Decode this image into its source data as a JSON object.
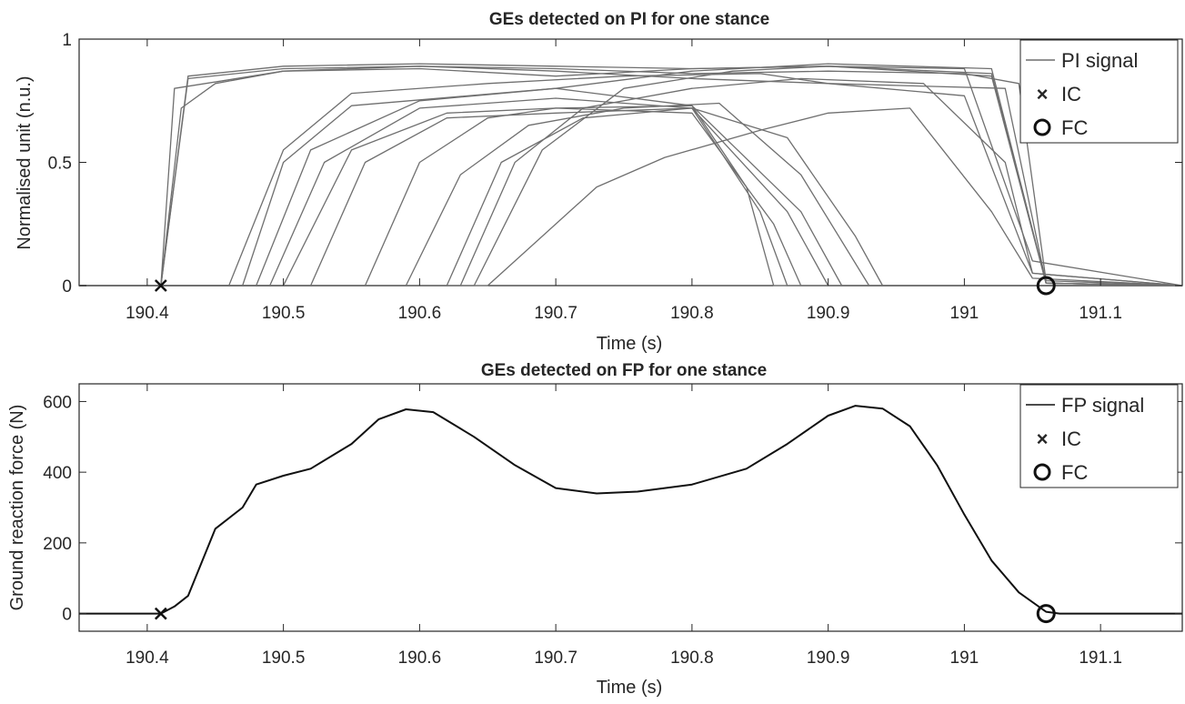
{
  "chart_data": [
    {
      "type": "line",
      "title": "GEs detected on PI for one stance",
      "xlabel": "Time (s)",
      "ylabel": "Normalised unit (n.u.)",
      "xlim": [
        190.35,
        191.16
      ],
      "ylim": [
        0,
        1
      ],
      "x_ticks": [
        190.4,
        190.5,
        190.6,
        190.7,
        190.8,
        190.9,
        191,
        191.1
      ],
      "x_tick_labels": [
        "190.4",
        "190.5",
        "190.6",
        "190.7",
        "190.8",
        "190.9",
        "191",
        "191.1"
      ],
      "y_ticks": [
        0,
        0.5,
        1
      ],
      "y_tick_labels": [
        "0",
        "0.5",
        "1"
      ],
      "grid": false,
      "legend_position": "top-right",
      "legend": [
        {
          "label": "PI signal",
          "marker": "line"
        },
        {
          "label": "IC",
          "marker": "x"
        },
        {
          "label": "FC",
          "marker": "o"
        }
      ],
      "colors": {
        "signal": "#6f6f6f",
        "marker": "#111111"
      },
      "series": [
        {
          "values": [
            [
              190.35,
              0
            ],
            [
              190.41,
              0
            ],
            [
              190.425,
              0.72
            ],
            [
              190.45,
              0.82
            ],
            [
              190.5,
              0.87
            ],
            [
              190.6,
              0.89
            ],
            [
              190.7,
              0.88
            ],
            [
              190.8,
              0.86
            ],
            [
              190.9,
              0.87
            ],
            [
              191,
              0.86
            ],
            [
              191.04,
              0.82
            ],
            [
              191.06,
              0.02
            ],
            [
              191.16,
              0
            ]
          ]
        },
        {
          "values": [
            [
              190.35,
              0
            ],
            [
              190.41,
              0
            ],
            [
              190.43,
              0.85
            ],
            [
              190.5,
              0.89
            ],
            [
              190.6,
              0.9
            ],
            [
              190.7,
              0.89
            ],
            [
              190.8,
              0.88
            ],
            [
              190.9,
              0.89
            ],
            [
              191.02,
              0.86
            ],
            [
              191.06,
              0.01
            ],
            [
              191.16,
              0
            ]
          ]
        },
        {
          "values": [
            [
              190.35,
              0
            ],
            [
              190.41,
              0
            ],
            [
              190.43,
              0.84
            ],
            [
              190.5,
              0.88
            ],
            [
              190.6,
              0.89
            ],
            [
              190.7,
              0.87
            ],
            [
              190.8,
              0.84
            ],
            [
              190.9,
              0.82
            ],
            [
              191.03,
              0.8
            ],
            [
              191.06,
              0.01
            ],
            [
              191.16,
              0
            ]
          ]
        },
        {
          "values": [
            [
              190.35,
              0
            ],
            [
              190.41,
              0
            ],
            [
              190.42,
              0.8
            ],
            [
              190.5,
              0.87
            ],
            [
              190.6,
              0.88
            ],
            [
              190.7,
              0.85
            ],
            [
              190.8,
              0.88
            ],
            [
              190.9,
              0.89
            ],
            [
              191.02,
              0.85
            ],
            [
              191.06,
              0.01
            ],
            [
              191.16,
              0
            ]
          ]
        },
        {
          "values": [
            [
              190.35,
              0
            ],
            [
              190.46,
              0
            ],
            [
              190.5,
              0.55
            ],
            [
              190.55,
              0.78
            ],
            [
              190.65,
              0.82
            ],
            [
              190.75,
              0.85
            ],
            [
              190.85,
              0.86
            ],
            [
              190.9,
              0.82
            ],
            [
              191,
              0.77
            ],
            [
              191.05,
              0.05
            ],
            [
              191.16,
              0
            ]
          ]
        },
        {
          "values": [
            [
              190.35,
              0
            ],
            [
              190.47,
              0
            ],
            [
              190.5,
              0.5
            ],
            [
              190.55,
              0.73
            ],
            [
              190.7,
              0.8
            ],
            [
              190.8,
              0.87
            ],
            [
              190.9,
              0.9
            ],
            [
              191.02,
              0.88
            ],
            [
              191.06,
              0.01
            ],
            [
              191.16,
              0
            ]
          ]
        },
        {
          "values": [
            [
              190.35,
              0
            ],
            [
              190.48,
              0
            ],
            [
              190.52,
              0.55
            ],
            [
              190.6,
              0.75
            ],
            [
              190.7,
              0.8
            ],
            [
              190.8,
              0.73
            ],
            [
              190.84,
              0.4
            ],
            [
              190.86,
              0
            ],
            [
              191.16,
              0
            ]
          ]
        },
        {
          "values": [
            [
              190.35,
              0
            ],
            [
              190.49,
              0
            ],
            [
              190.53,
              0.5
            ],
            [
              190.6,
              0.72
            ],
            [
              190.7,
              0.76
            ],
            [
              190.8,
              0.72
            ],
            [
              190.85,
              0.3
            ],
            [
              190.87,
              0
            ],
            [
              191.16,
              0
            ]
          ]
        },
        {
          "values": [
            [
              190.35,
              0
            ],
            [
              190.5,
              0
            ],
            [
              190.55,
              0.55
            ],
            [
              190.62,
              0.7
            ],
            [
              190.7,
              0.72
            ],
            [
              190.8,
              0.7
            ],
            [
              190.86,
              0.25
            ],
            [
              190.88,
              0
            ],
            [
              191.16,
              0
            ]
          ]
        },
        {
          "values": [
            [
              190.35,
              0
            ],
            [
              190.52,
              0
            ],
            [
              190.56,
              0.5
            ],
            [
              190.62,
              0.68
            ],
            [
              190.7,
              0.7
            ],
            [
              190.8,
              0.72
            ],
            [
              190.87,
              0.3
            ],
            [
              190.9,
              0
            ],
            [
              191.16,
              0
            ]
          ]
        },
        {
          "values": [
            [
              190.35,
              0
            ],
            [
              190.56,
              0
            ],
            [
              190.6,
              0.5
            ],
            [
              190.65,
              0.68
            ],
            [
              190.7,
              0.72
            ],
            [
              190.8,
              0.73
            ],
            [
              190.88,
              0.3
            ],
            [
              190.91,
              0
            ],
            [
              191.16,
              0
            ]
          ]
        },
        {
          "values": [
            [
              190.35,
              0
            ],
            [
              190.59,
              0
            ],
            [
              190.63,
              0.45
            ],
            [
              190.68,
              0.65
            ],
            [
              190.75,
              0.72
            ],
            [
              190.82,
              0.74
            ],
            [
              190.88,
              0.45
            ],
            [
              190.93,
              0
            ],
            [
              191.16,
              0
            ]
          ]
        },
        {
          "values": [
            [
              190.35,
              0
            ],
            [
              190.62,
              0
            ],
            [
              190.66,
              0.5
            ],
            [
              190.72,
              0.68
            ],
            [
              190.8,
              0.72
            ],
            [
              190.87,
              0.6
            ],
            [
              190.92,
              0.2
            ],
            [
              190.94,
              0
            ],
            [
              191.16,
              0
            ]
          ]
        },
        {
          "values": [
            [
              190.35,
              0
            ],
            [
              190.63,
              0
            ],
            [
              190.67,
              0.5
            ],
            [
              190.72,
              0.72
            ],
            [
              190.8,
              0.8
            ],
            [
              190.88,
              0.84
            ],
            [
              190.97,
              0.82
            ],
            [
              191.03,
              0.5
            ],
            [
              191.05,
              0.05
            ],
            [
              191.16,
              0
            ]
          ]
        },
        {
          "values": [
            [
              190.35,
              0
            ],
            [
              190.64,
              0
            ],
            [
              190.69,
              0.55
            ],
            [
              190.75,
              0.8
            ],
            [
              190.83,
              0.87
            ],
            [
              190.9,
              0.89
            ],
            [
              191,
              0.88
            ],
            [
              191.05,
              0.1
            ],
            [
              191.16,
              0
            ]
          ]
        },
        {
          "values": [
            [
              190.35,
              0
            ],
            [
              190.65,
              0
            ],
            [
              190.73,
              0.4
            ],
            [
              190.78,
              0.52
            ],
            [
              190.85,
              0.63
            ],
            [
              190.9,
              0.7
            ],
            [
              190.96,
              0.72
            ],
            [
              191.02,
              0.3
            ],
            [
              191.05,
              0.03
            ],
            [
              191.16,
              0
            ]
          ]
        }
      ],
      "ic": {
        "x": 190.41,
        "y": 0
      },
      "fc": {
        "x": 191.06,
        "y": 0
      }
    },
    {
      "type": "line",
      "title": "GEs detected on FP for one stance",
      "xlabel": "Time (s)",
      "ylabel": "Ground reaction force (N)",
      "xlim": [
        190.35,
        191.16
      ],
      "ylim": [
        -50,
        650
      ],
      "x_ticks": [
        190.4,
        190.5,
        190.6,
        190.7,
        190.8,
        190.9,
        191,
        191.1
      ],
      "x_tick_labels": [
        "190.4",
        "190.5",
        "190.6",
        "190.7",
        "190.8",
        "190.9",
        "191",
        "191.1"
      ],
      "y_ticks": [
        0,
        200,
        400,
        600
      ],
      "y_tick_labels": [
        "0",
        "200",
        "400",
        "600"
      ],
      "grid": false,
      "legend_position": "top-right",
      "legend": [
        {
          "label": "FP signal",
          "marker": "line"
        },
        {
          "label": "IC",
          "marker": "x"
        },
        {
          "label": "FC",
          "marker": "o"
        }
      ],
      "colors": {
        "signal": "#111111",
        "marker": "#111111"
      },
      "series": [
        {
          "values": [
            [
              190.35,
              0
            ],
            [
              190.41,
              0
            ],
            [
              190.42,
              20
            ],
            [
              190.43,
              50
            ],
            [
              190.45,
              240
            ],
            [
              190.47,
              300
            ],
            [
              190.48,
              365
            ],
            [
              190.5,
              390
            ],
            [
              190.52,
              410
            ],
            [
              190.55,
              480
            ],
            [
              190.57,
              550
            ],
            [
              190.59,
              578
            ],
            [
              190.61,
              570
            ],
            [
              190.64,
              500
            ],
            [
              190.67,
              420
            ],
            [
              190.7,
              355
            ],
            [
              190.73,
              340
            ],
            [
              190.76,
              345
            ],
            [
              190.8,
              365
            ],
            [
              190.84,
              410
            ],
            [
              190.87,
              480
            ],
            [
              190.9,
              560
            ],
            [
              190.92,
              588
            ],
            [
              190.94,
              580
            ],
            [
              190.96,
              530
            ],
            [
              190.98,
              420
            ],
            [
              191,
              280
            ],
            [
              191.02,
              150
            ],
            [
              191.04,
              60
            ],
            [
              191.06,
              5
            ],
            [
              191.07,
              0
            ],
            [
              191.16,
              0
            ]
          ]
        }
      ],
      "ic": {
        "x": 190.41,
        "y": 0
      },
      "fc": {
        "x": 191.06,
        "y": 0
      }
    }
  ]
}
